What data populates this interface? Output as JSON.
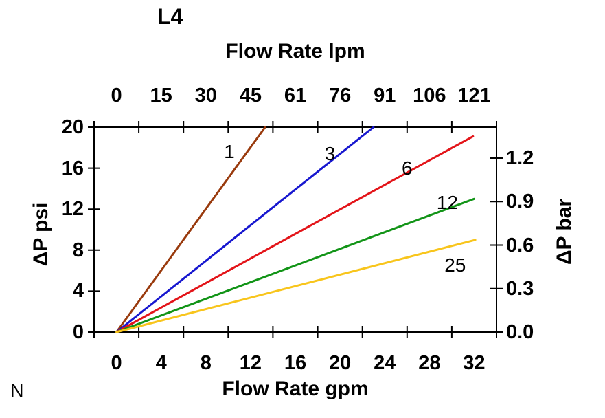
{
  "page": {
    "corner_note": "N",
    "background": "#ffffff"
  },
  "chart_data": {
    "type": "line",
    "title": "L4",
    "grid": false,
    "legend": "inline-labels",
    "axis_color": "#000000",
    "axes": {
      "top": {
        "label": "Flow Rate lpm",
        "tick_labels": [
          "0",
          "15",
          "30",
          "45",
          "61",
          "76",
          "91",
          "106",
          "121"
        ]
      },
      "bottom": {
        "label": "Flow Rate gpm",
        "tick_labels": [
          "0",
          "4",
          "8",
          "12",
          "16",
          "20",
          "24",
          "28",
          "32"
        ],
        "values_gpm": [
          0,
          4,
          8,
          12,
          16,
          20,
          24,
          28,
          32
        ],
        "range_gpm": [
          0,
          32
        ]
      },
      "left": {
        "label": "ΔP psi",
        "tick_labels": [
          "0",
          "4",
          "8",
          "12",
          "16",
          "20"
        ],
        "values_psi": [
          0,
          4,
          8,
          12,
          16,
          20
        ],
        "range_psi": [
          0,
          20
        ]
      },
      "right": {
        "label": "ΔP bar",
        "tick_labels": [
          "0.0",
          "0.3",
          "0.6",
          "0.9",
          "1.2"
        ],
        "values_bar": [
          0,
          0.3,
          0.6,
          0.9,
          1.2
        ],
        "range_bar": [
          0,
          1.2
        ]
      }
    },
    "series": [
      {
        "label": "1",
        "color": "#993A0D",
        "points_gpm_psi": [
          [
            0,
            0
          ],
          [
            13.3,
            20
          ]
        ],
        "label_at_gpm_psi": [
          10.1,
          17.6
        ]
      },
      {
        "label": "3",
        "color": "#1717CF",
        "points_gpm_psi": [
          [
            0,
            0
          ],
          [
            23.0,
            20
          ]
        ],
        "label_at_gpm_psi": [
          19.1,
          17.4
        ]
      },
      {
        "label": "6",
        "color": "#E31419",
        "points_gpm_psi": [
          [
            0,
            0
          ],
          [
            31.9,
            19.1
          ]
        ],
        "label_at_gpm_psi": [
          26.0,
          16.0
        ]
      },
      {
        "label": "12",
        "color": "#129417",
        "points_gpm_psi": [
          [
            0,
            0
          ],
          [
            32.0,
            13.0
          ]
        ],
        "label_at_gpm_psi": [
          29.6,
          12.6
        ]
      },
      {
        "label": "25",
        "color": "#F8C51C",
        "points_gpm_psi": [
          [
            0,
            0
          ],
          [
            32.1,
            9.0
          ]
        ],
        "label_at_gpm_psi": [
          30.3,
          6.5
        ]
      }
    ]
  }
}
